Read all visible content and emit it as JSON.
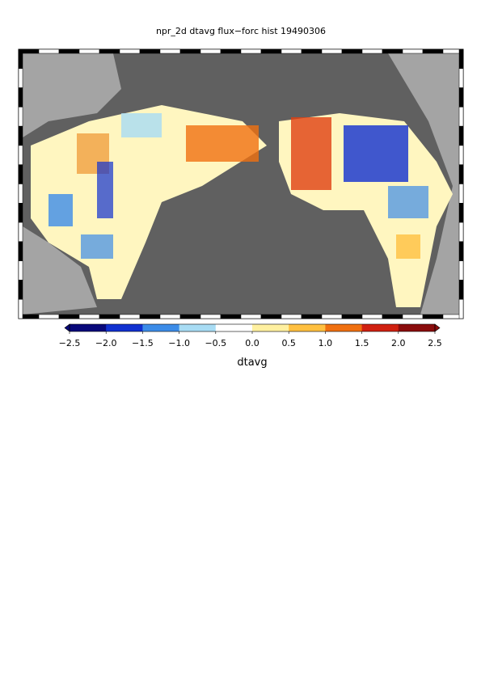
{
  "title": "npr_2d dtavg flux−forc hist 19490306",
  "colorbar": {
    "label": "dtavg",
    "range": [
      -2.5,
      2.5
    ],
    "colors": [
      "#08087a",
      "#1030d0",
      "#3c8ce8",
      "#a8dcf4",
      "#ffffff",
      "#fff0a0",
      "#ffc040",
      "#f07010",
      "#d02010",
      "#8a0c0c"
    ],
    "ticks": [
      {
        "value": -2.5,
        "label": "−2.5"
      },
      {
        "value": -2.0,
        "label": "−2.0"
      },
      {
        "value": -1.5,
        "label": "−1.5"
      },
      {
        "value": -1.0,
        "label": "−1.0"
      },
      {
        "value": -0.5,
        "label": "−0.5"
      },
      {
        "value": 0.0,
        "label": "0.0"
      },
      0.5,
      {
        "value": 1.0,
        "label": "1.0"
      },
      1.5,
      {
        "value": 2.0,
        "label": "2.0"
      },
      2.5
    ]
  }
}
